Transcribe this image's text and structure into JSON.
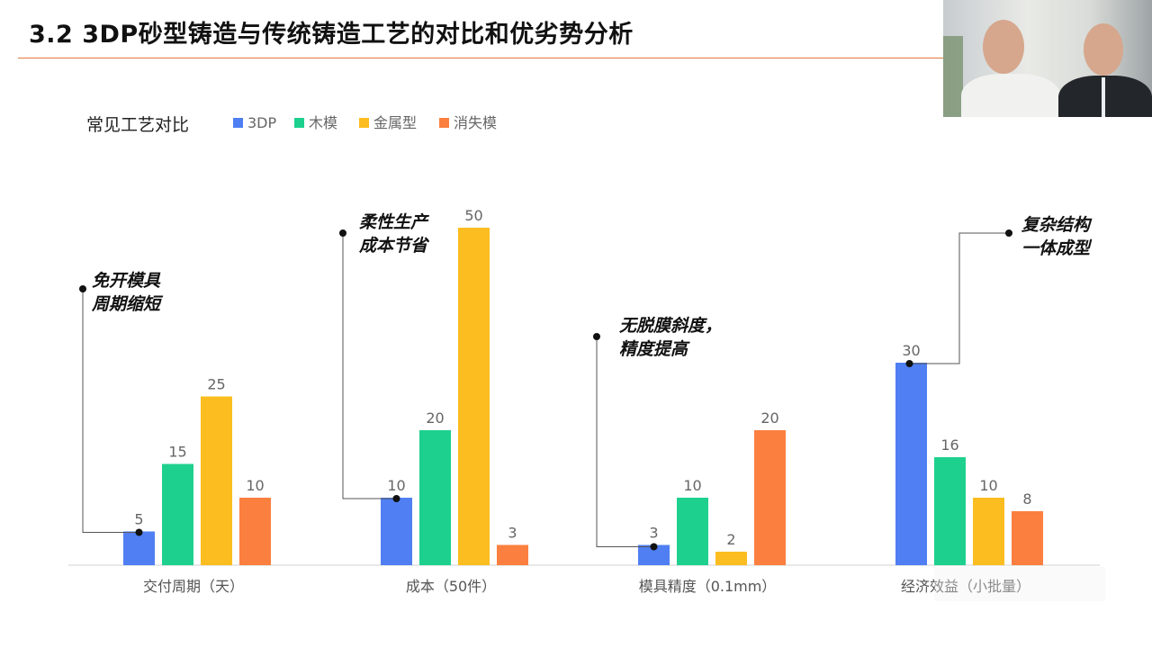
{
  "slide": {
    "title": "3.2 3DP砂型铸造与传统铸造工艺的对比和优劣势分析"
  },
  "colors": {
    "accent_rule": "#e07a3a",
    "series": [
      "#4f7ff2",
      "#1ed08e",
      "#fbbd1f",
      "#fb7f3f"
    ]
  },
  "chart_data": {
    "type": "bar",
    "title": "常见工艺对比",
    "legend_position": "top-left",
    "categories": [
      "交付周期（天）",
      "成本（50件）",
      "模具精度（0.1mm）",
      "经济效益（小批量）"
    ],
    "series": [
      {
        "name": "3DP",
        "values": [
          5,
          10,
          3,
          30
        ]
      },
      {
        "name": "木模",
        "values": [
          15,
          20,
          10,
          16
        ]
      },
      {
        "name": "金属型",
        "values": [
          25,
          50,
          2,
          10
        ]
      },
      {
        "name": "消失模",
        "values": [
          10,
          3,
          20,
          8
        ]
      }
    ],
    "ylim": [
      0,
      50
    ],
    "grid": false,
    "annotations": [
      {
        "category": "交付周期（天）",
        "series": "3DP",
        "lines": [
          "免开模具",
          "周期缩短"
        ]
      },
      {
        "category": "成本（50件）",
        "series": "3DP",
        "lines": [
          "柔性生产",
          "成本节省"
        ]
      },
      {
        "category": "模具精度（0.1mm）",
        "series": "3DP",
        "lines": [
          "无脱膜斜度，",
          "精度提高"
        ]
      },
      {
        "category": "经济效益（小批量）",
        "series": "3DP",
        "lines": [
          "复杂结构",
          "一体成型"
        ]
      }
    ]
  }
}
